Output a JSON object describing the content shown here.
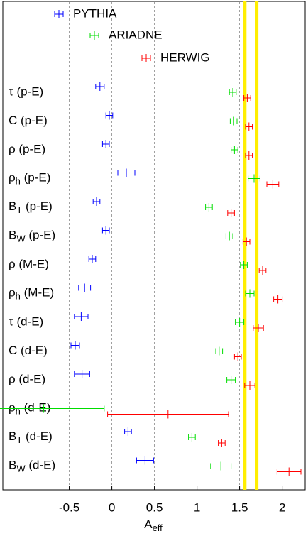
{
  "chart_data": {
    "type": "errorbar-h",
    "x_label": "Aeff",
    "categories": [
      "τ (p-E)",
      "C (p-E)",
      "ρ (p-E)",
      "ρh (p-E)",
      "BT (p-E)",
      "BW (p-E)",
      "ρ (M-E)",
      "ρh (M-E)",
      "τ (d-E)",
      "C (d-E)",
      "ρ (d-E)",
      "ρh (d-E)",
      "BT (d-E)",
      "BW (d-E)"
    ],
    "series": [
      {
        "name": "PYTHIA",
        "color": "#0000ff",
        "values": [
          -0.14,
          -0.03,
          -0.07,
          0.17,
          -0.18,
          -0.07,
          -0.23,
          -0.32,
          -0.36,
          -0.43,
          -0.35,
          null,
          0.19,
          0.39
        ],
        "errors": [
          0.05,
          0.04,
          0.04,
          0.1,
          0.04,
          0.04,
          0.04,
          0.07,
          0.08,
          0.05,
          0.09,
          null,
          0.04,
          0.1
        ]
      },
      {
        "name": "ARIADNE",
        "color": "#00dd00",
        "values": [
          1.42,
          1.43,
          1.44,
          1.67,
          1.14,
          1.38,
          1.55,
          1.62,
          1.5,
          1.26,
          1.4,
          -0.8,
          0.94,
          1.28
        ],
        "errors": [
          0.04,
          0.04,
          0.04,
          0.07,
          0.04,
          0.04,
          0.04,
          0.05,
          0.05,
          0.04,
          0.05,
          0.71,
          0.04,
          0.12
        ]
      },
      {
        "name": "HERWIG",
        "color": "#ff0000",
        "values": [
          1.59,
          1.61,
          1.61,
          1.89,
          1.4,
          1.58,
          1.77,
          1.95,
          1.72,
          1.48,
          1.62,
          0.66,
          1.29,
          2.08
        ],
        "errors": [
          0.04,
          0.04,
          0.04,
          0.07,
          0.04,
          0.04,
          0.04,
          0.05,
          0.06,
          0.04,
          0.06,
          0.71,
          0.04,
          0.14
        ]
      }
    ],
    "reference_lines": [
      1.56,
      1.7
    ],
    "reference_color": "#ffee00",
    "xlim": [
      -1.28,
      2.27
    ],
    "xticks": [
      -0.5,
      0,
      0.5,
      1,
      1.5,
      2
    ],
    "grid": true
  }
}
